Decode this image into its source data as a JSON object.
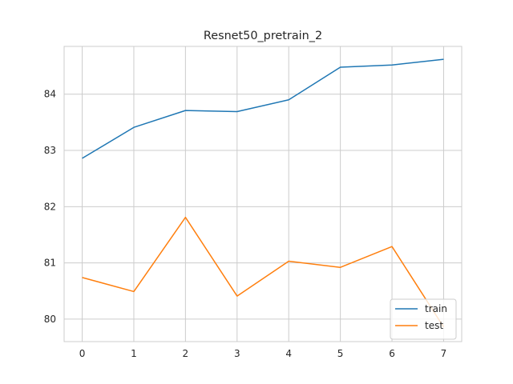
{
  "chart_data": {
    "type": "line",
    "title": "Resnet50_pretrain_2",
    "xlabel": "",
    "ylabel": "",
    "x": [
      0,
      1,
      2,
      3,
      4,
      5,
      6,
      7
    ],
    "xticks": [
      "0",
      "1",
      "2",
      "3",
      "4",
      "5",
      "6",
      "7"
    ],
    "yticks": [
      "80",
      "81",
      "82",
      "83",
      "84"
    ],
    "xlim": [
      -0.35,
      7.35
    ],
    "ylim": [
      79.6,
      84.85
    ],
    "grid": true,
    "legend_position": "lower right",
    "series": [
      {
        "name": "train",
        "color": "#1f77b4",
        "values": [
          82.86,
          83.41,
          83.71,
          83.69,
          83.9,
          84.48,
          84.52,
          84.62
        ]
      },
      {
        "name": "test",
        "color": "#ff7f0e",
        "values": [
          80.74,
          80.49,
          81.81,
          80.41,
          81.03,
          80.92,
          81.29,
          79.86
        ]
      }
    ]
  }
}
